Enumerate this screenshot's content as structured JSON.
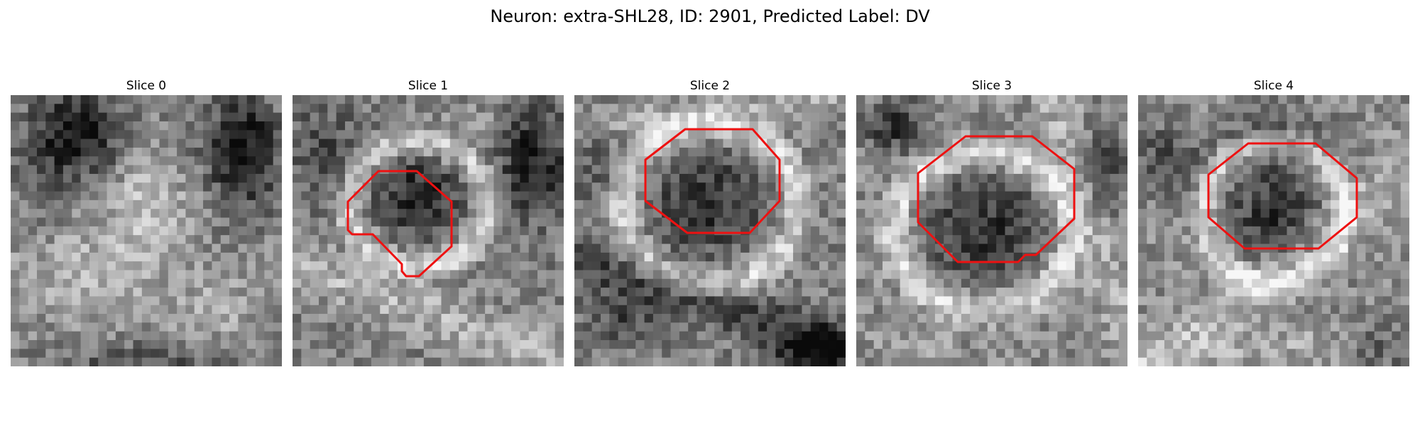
{
  "figure": {
    "title": "Neuron: extra-SHL28, ID: 2901, Predicted Label: DV"
  },
  "panels": [
    {
      "title": "Slice 0",
      "has_contour": false
    },
    {
      "title": "Slice 1",
      "has_contour": true
    },
    {
      "title": "Slice 2",
      "has_contour": true
    },
    {
      "title": "Slice 3",
      "has_contour": true
    },
    {
      "title": "Slice 4",
      "has_contour": true
    }
  ],
  "colors": {
    "contour": "#ee1111",
    "background": "#ffffff"
  },
  "colormap": "grayscale"
}
